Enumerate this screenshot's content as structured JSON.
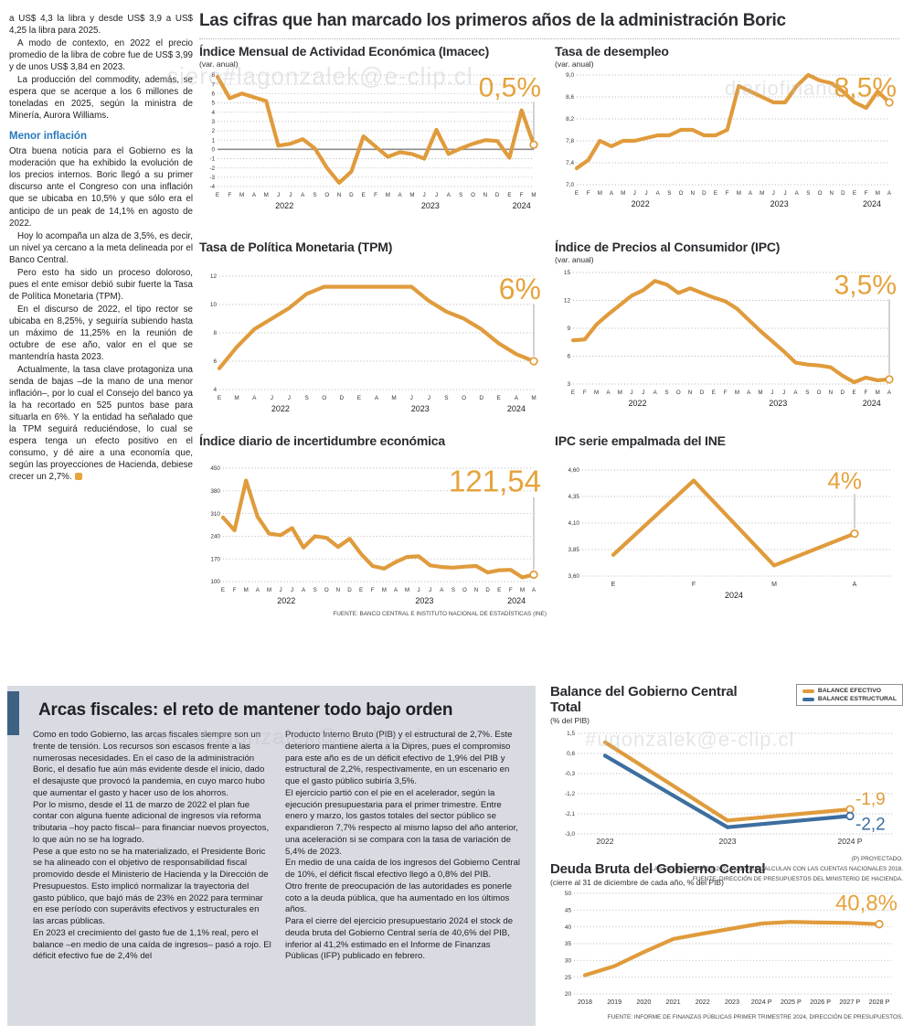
{
  "page": {
    "main_title": "Las cifras que han marcado los primeros años de la administración Boric"
  },
  "watermarks": {
    "top_left": "ciero#lagonzalek@e-clip.cl",
    "top_right": "diariofinanc",
    "bottom_left": "ero.#ugonzalek@e-clip.cl",
    "bottom_right": "#ugonzalek@e-clip.cl"
  },
  "left_column": {
    "paragraphs": [
      "a US$ 4,3 la libra y desde US$ 3,9 a US$ 4,25 la libra para 2025.",
      "A modo de contexto, en 2022 el precio promedio de la libra de cobre fue de US$ 3,99 y de unos US$ 3,84 en 2023.",
      "La producción del commodity, además, se espera que se acerque a los 6 millones de toneladas en 2025, según la ministra de Minería, Aurora Williams."
    ],
    "subhead": "Menor inflación",
    "paragraphs_after": [
      "Otra buena noticia para el Gobierno es la moderación que ha exhibido la evolución de los precios internos. Boric llegó a su primer discurso ante el Congreso con una inflación que se ubicaba en 10,5% y que sólo era el anticipo de un peak de 14,1% en agosto de 2022.",
      "Hoy lo acompaña un alza de 3,5%, es decir, un nivel ya cercano a la meta delineada por el Banco Central.",
      "Pero esto ha sido un proceso doloroso, pues el ente emisor debió subir fuerte la Tasa de Política Monetaria (TPM).",
      "En el discurso de 2022, el tipo rector se ubicaba en 8,25%, y seguiría subiendo hasta un máximo de 11,25% en la reunión de octubre de ese año, valor en el que se mantendría hasta 2023."
    ],
    "last_paragraph": "Actualmente, la tasa clave protagoniza una senda de bajas –de la mano de una menor inflación–, por lo cual el Consejo del banco ya la ha recortado en 525 puntos base para situarla en 6%. Y la entidad ha señalado que la TPM seguirá reduciéndose, lo cual se espera tenga un efecto positivo en el consumo, y dé aire a una economía que, según las proyecciones de Hacienda, debiese crecer un 2,7%."
  },
  "fiscal": {
    "heading": "Arcas fiscales: el reto de mantener todo bajo orden",
    "col1": [
      "Como en todo Gobierno, las arcas fiscales siempre son un frente de tensión. Los recursos son escasos frente a las numerosas necesidades. En el caso de la administración Boric, el desafío fue aún más evidente desde el inicio, dado el desajuste que provocó la pandemia, en cuyo marco hubo que aumentar el gasto y hacer uso de los ahorros.",
      "Por lo mismo, desde el 11 de marzo de 2022 el plan fue contar con alguna fuente adicional de ingresos vía reforma tributaria –hoy pacto fiscal– para financiar nuevos proyectos, lo que aún no se ha logrado.",
      "Pese a que esto no se ha materializado, el Presidente Boric se ha alineado con el objetivo de responsabilidad fiscal promovido desde el Ministerio de Hacienda y la Dirección de Presupuestos. Esto implicó normalizar la trayectoria del gasto público, que bajó más de 23% en 2022 para terminar en ese período con superávits efectivos y estructurales en las arcas públicas.",
      "En 2023 el crecimiento del gasto fue de 1,1% real, pero el balance –en medio de una caída de ingresos– pasó a rojo. El déficit efectivo fue de 2,4% del"
    ],
    "col2": [
      "Producto Interno Bruto (PIB) y el estructural de 2,7%. Este deterioro mantiene alerta a la Dipres, pues el compromiso para este año es de un déficit efectivo de 1,9% del PIB y estructural de 2,2%, respectivamente, en un escenario en que el gasto público subiría 3,5%.",
      "El ejercicio partió con el pie en el acelerador, según la ejecución presupuestaria para el primer trimestre. Entre enero y marzo, los gastos totales del sector público se expandieron 7,7% respecto al mismo lapso del año anterior, una aceleración si se compara con la tasa de variación de 5,4% de 2023.",
      "En medio de una caída de los ingresos del Gobierno Central de 10%, el déficit fiscal efectivo llegó a 0,8% del PIB.",
      "Otro frente de preocupación de las autoridades es ponerle coto a la deuda pública, que ha aumentado en los últimos años.",
      "Para el cierre del ejercicio presupuestario 2024 el stock de deuda bruta del Gobierno Central sería de 40,6% del PIB, inferior al 41,2% estimado en el Informe de Finanzas Públicas (IFP) publicado en febrero."
    ]
  },
  "chart_data": {
    "imacec": {
      "type": "line",
      "title": "Índice Mensual de Actividad Económica (Imacec)",
      "subtitle": "(var. anual)",
      "ylim": [
        -4,
        8
      ],
      "yticks": [
        8,
        7,
        6,
        5,
        4,
        3,
        2,
        1,
        0,
        -1,
        -2,
        -3,
        -4
      ],
      "ytick_labels": [
        "8",
        "7",
        "6",
        "5",
        "4",
        "3",
        "2",
        "1",
        "0",
        "-1",
        "-2",
        "-3",
        "-4"
      ],
      "zero_line": true,
      "x_labels": [
        "E",
        "F",
        "M",
        "A",
        "M",
        "J",
        "J",
        "A",
        "S",
        "O",
        "N",
        "D",
        "E",
        "F",
        "M",
        "A",
        "M",
        "J",
        "J",
        "A",
        "S",
        "O",
        "N",
        "D",
        "E",
        "F",
        "M"
      ],
      "years": [
        {
          "label": "2022",
          "from": 0,
          "to": 11
        },
        {
          "label": "2023",
          "from": 12,
          "to": 23
        },
        {
          "label": "2024",
          "from": 24,
          "to": 26
        }
      ],
      "series": [
        {
          "color": "#E09B3C",
          "values": [
            7.8,
            5.5,
            6.0,
            5.6,
            5.2,
            0.4,
            0.6,
            1.1,
            0.1,
            -2.0,
            -3.6,
            -2.4,
            1.4,
            0.3,
            -0.8,
            -0.3,
            -0.5,
            -1.0,
            2.1,
            -0.5,
            0.1,
            0.6,
            1.0,
            0.9,
            -0.9,
            4.2,
            0.5
          ],
          "end_circle": true
        }
      ],
      "highlight": {
        "text": "0,5%",
        "size": 30,
        "color": "#E5A33C"
      },
      "marker": true
    },
    "desempleo": {
      "type": "line",
      "title": "Tasa de desempleo",
      "subtitle": "(var. anual)",
      "ylim": [
        7.0,
        9.0
      ],
      "yticks": [
        9.0,
        8.6,
        8.2,
        7.8,
        7.4,
        7.0
      ],
      "ytick_labels": [
        "9,0",
        "8,6",
        "8,2",
        "7,8",
        "7,4",
        "7,0"
      ],
      "x_labels": [
        "E",
        "F",
        "M",
        "A",
        "M",
        "J",
        "J",
        "A",
        "S",
        "O",
        "N",
        "D",
        "E",
        "F",
        "M",
        "A",
        "M",
        "J",
        "J",
        "A",
        "S",
        "O",
        "N",
        "D",
        "E",
        "F",
        "M",
        "A"
      ],
      "years": [
        {
          "label": "2022",
          "from": 0,
          "to": 11
        },
        {
          "label": "2023",
          "from": 12,
          "to": 23
        },
        {
          "label": "2024",
          "from": 24,
          "to": 27
        }
      ],
      "series": [
        {
          "color": "#E09B3C",
          "values": [
            7.3,
            7.45,
            7.8,
            7.7,
            7.8,
            7.8,
            7.85,
            7.9,
            7.9,
            8.0,
            8.0,
            7.9,
            7.9,
            8.0,
            8.8,
            8.7,
            8.6,
            8.5,
            8.5,
            8.8,
            9.0,
            8.9,
            8.85,
            8.7,
            8.5,
            8.4,
            8.7,
            8.5
          ],
          "end_circle": true
        }
      ],
      "highlight": {
        "text": "8,5%",
        "size": 30,
        "color": "#E5A33C"
      },
      "marker": true
    },
    "tpm": {
      "type": "line",
      "title": "Tasa de Política Monetaria (TPM)",
      "subtitle": null,
      "ylim": [
        4,
        12
      ],
      "yticks": [
        12,
        10,
        8,
        6,
        4
      ],
      "ytick_labels": [
        "12",
        "10",
        "8",
        "6",
        "4"
      ],
      "x_labels": [
        "E",
        "M",
        "A",
        "J",
        "J",
        "S",
        "O",
        "D",
        "E",
        "A",
        "M",
        "J",
        "J",
        "S",
        "O",
        "D",
        "E",
        "A",
        "M"
      ],
      "years": [
        {
          "label": "2022",
          "from": 0,
          "to": 7
        },
        {
          "label": "2023",
          "from": 8,
          "to": 15
        },
        {
          "label": "2024",
          "from": 16,
          "to": 18
        }
      ],
      "series": [
        {
          "color": "#E09B3C",
          "values": [
            5.5,
            7.0,
            8.25,
            9.0,
            9.75,
            10.75,
            11.25,
            11.25,
            11.25,
            11.25,
            11.25,
            11.25,
            10.25,
            9.5,
            9.0,
            8.25,
            7.25,
            6.5,
            6.0
          ],
          "end_circle": true
        }
      ],
      "highlight": {
        "text": "6%",
        "size": 32,
        "color": "#E5A33C"
      },
      "marker": true
    },
    "ipc": {
      "type": "line",
      "title": "Índice de Precios al Consumidor (IPC)",
      "subtitle": "(var. anual)",
      "ylim": [
        3,
        15
      ],
      "yticks": [
        15,
        12,
        9,
        6,
        3
      ],
      "ytick_labels": [
        "15",
        "12",
        "9",
        "6",
        "3"
      ],
      "x_labels": [
        "E",
        "F",
        "M",
        "A",
        "M",
        "J",
        "J",
        "A",
        "S",
        "O",
        "N",
        "D",
        "E",
        "F",
        "M",
        "A",
        "M",
        "J",
        "J",
        "A",
        "S",
        "O",
        "N",
        "D",
        "E",
        "F",
        "M",
        "A"
      ],
      "years": [
        {
          "label": "2022",
          "from": 0,
          "to": 11
        },
        {
          "label": "2023",
          "from": 12,
          "to": 23
        },
        {
          "label": "2024",
          "from": 24,
          "to": 27
        }
      ],
      "series": [
        {
          "color": "#E09B3C",
          "values": [
            7.7,
            7.8,
            9.4,
            10.5,
            11.5,
            12.5,
            13.1,
            14.1,
            13.7,
            12.8,
            13.3,
            12.8,
            12.3,
            11.9,
            11.1,
            9.9,
            8.7,
            7.6,
            6.5,
            5.3,
            5.1,
            5.0,
            4.8,
            3.9,
            3.2,
            3.7,
            3.4,
            3.5
          ],
          "end_circle": true
        }
      ],
      "highlight": {
        "text": "3,5%",
        "size": 30,
        "color": "#E5A33C"
      },
      "marker": true
    },
    "incertidumbre": {
      "type": "line",
      "title": "Índice diario de incertidumbre económica",
      "subtitle": null,
      "source": "FUENTE: BANCO CENTRAL E INSTITUTO NACIONAL DE ESTADÍSTICAS (INE)",
      "ylim": [
        100,
        450
      ],
      "yticks": [
        450,
        380,
        310,
        240,
        170,
        100
      ],
      "ytick_labels": [
        "450",
        "380",
        "310",
        "240",
        "170",
        "100"
      ],
      "x_labels": [
        "E",
        "F",
        "M",
        "A",
        "M",
        "J",
        "J",
        "A",
        "S",
        "O",
        "N",
        "D",
        "E",
        "F",
        "M",
        "A",
        "M",
        "J",
        "J",
        "A",
        "S",
        "O",
        "N",
        "D",
        "E",
        "F",
        "M",
        "A"
      ],
      "years": [
        {
          "label": "2022",
          "from": 0,
          "to": 11
        },
        {
          "label": "2023",
          "from": 12,
          "to": 23
        },
        {
          "label": "2024",
          "from": 24,
          "to": 27
        }
      ],
      "series": [
        {
          "color": "#E09B3C",
          "values": [
            298,
            258,
            412,
            300,
            248,
            243,
            265,
            205,
            240,
            235,
            207,
            232,
            185,
            148,
            140,
            160,
            176,
            178,
            150,
            145,
            143,
            146,
            148,
            128,
            135,
            136,
            113,
            121.54
          ],
          "end_circle": true
        }
      ],
      "highlight": {
        "text": "121,54",
        "size": 33,
        "color": "#E5A33C"
      },
      "marker": true
    },
    "empalmada": {
      "type": "line",
      "title": "IPC serie empalmada del INE",
      "subtitle": null,
      "ylim": [
        3.6,
        4.6
      ],
      "yticks": [
        4.6,
        4.35,
        4.1,
        3.85,
        3.6
      ],
      "ytick_labels": [
        "4,60",
        "4,35",
        "4,10",
        "3,85",
        "3,60"
      ],
      "x_labels": [
        "E",
        "F",
        "M",
        "A"
      ],
      "years": [
        {
          "label": "2024",
          "from": 0,
          "to": 3
        }
      ],
      "series": [
        {
          "color": "#E09B3C",
          "values": [
            3.8,
            4.5,
            3.7,
            4.0
          ],
          "end_circle": true
        }
      ],
      "highlight": {
        "text": "4%",
        "size": 26,
        "color": "#E5A33C"
      },
      "marker": true
    },
    "balance": {
      "type": "line",
      "title": "Balance del Gobierno Central Total",
      "subtitle": "(% del PIB)",
      "footnotes": [
        "(P) PROYECTADO.",
        "LAS ENTRE LOS AÑOS 2021 Y 2023 SE CALCULAN CON LAS CUENTAS NACIONALES 2018.",
        "FUENTE: DIRECCIÓN DE PRESUPUESTOS DEL MINISTERIO DE HACIENDA."
      ],
      "ylim": [
        -3.0,
        1.5
      ],
      "yticks": [
        1.5,
        0.6,
        -0.3,
        -1.2,
        -2.1,
        -3.0
      ],
      "ytick_labels": [
        "1,5",
        "0,6",
        "-0,3",
        "-1,2",
        "-2,1",
        "-3,0"
      ],
      "x_labels": [
        "2022",
        "2023",
        "2024 P"
      ],
      "years": [],
      "series": [
        {
          "name": "BALANCE EFECTIVO",
          "color": "#E09B3C",
          "values": [
            1.1,
            -2.4,
            -1.9
          ],
          "end_circle": true,
          "end_label": {
            "text": "-1,9",
            "dx": 6,
            "dy": -5,
            "size": 19
          }
        },
        {
          "name": "BALANCE ESTRUCTURAL",
          "color": "#3C6E9F",
          "values": [
            0.5,
            -2.7,
            -2.2
          ],
          "end_circle": true,
          "end_label": {
            "text": "-2,2",
            "dx": 6,
            "dy": 15,
            "size": 19
          }
        }
      ],
      "marker": false
    },
    "deuda": {
      "type": "line",
      "title": "Deuda Bruta del Gobierno Central",
      "subtitle": "(cierre al 31 de diciembre de cada año, % del PIB)",
      "source": "FUENTE: INFORME DE FINANZAS PÚBLICAS PRIMER TRIMESTRE 2024, DIRECCIÓN DE PRESUPUESTOS.",
      "ylim": [
        20,
        50
      ],
      "yticks": [
        50,
        45,
        40,
        35,
        30,
        25,
        20
      ],
      "ytick_labels": [
        "50",
        "45",
        "40",
        "35",
        "30",
        "25",
        "20"
      ],
      "x_labels": [
        "2018",
        "2019",
        "2020",
        "2021",
        "2022",
        "2023",
        "2024 P",
        "2025 P",
        "2026 P",
        "2027 P",
        "2028 P"
      ],
      "years": [],
      "series": [
        {
          "color": "#E09B3C",
          "values": [
            25.6,
            28.3,
            32.5,
            36.4,
            38.0,
            39.5,
            41.0,
            41.5,
            41.3,
            41.2,
            40.8
          ],
          "end_circle": true
        }
      ],
      "highlight": {
        "text": "40,8%",
        "size": 24,
        "color": "#E5A33C"
      },
      "marker": false
    }
  }
}
